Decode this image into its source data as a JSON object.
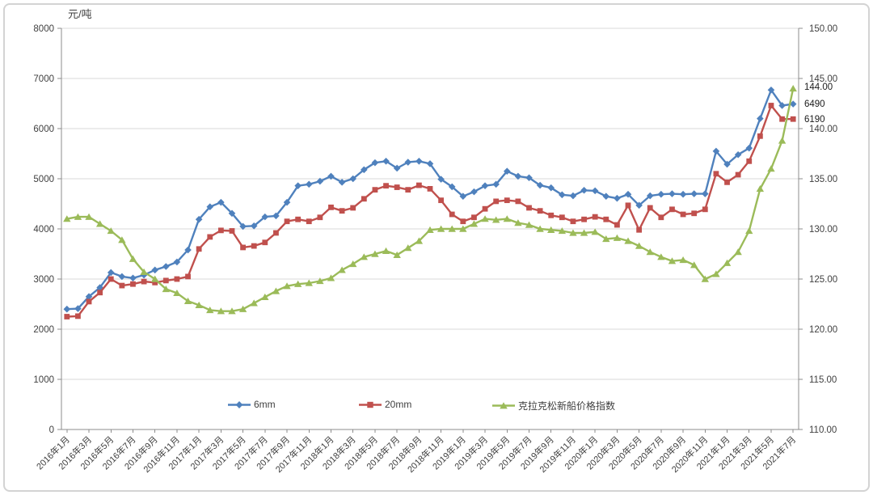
{
  "chart": {
    "y_axis_title": "元/吨",
    "background": "#ffffff",
    "frame_color": "#d3d3d3",
    "gridline_color": "#d9d9d9",
    "axis_color": "#8c8c8c",
    "text_color": "#3f3f3f"
  },
  "chart_data": {
    "type": "line",
    "title": "",
    "grid": true,
    "legend_position": "bottom-inside",
    "left_axis": {
      "title": "元/吨",
      "min": 0,
      "max": 8000,
      "step": 1000,
      "tick_labels": [
        "0",
        "1000",
        "2000",
        "3000",
        "4000",
        "5000",
        "6000",
        "7000",
        "8000"
      ]
    },
    "right_axis": {
      "min": 110,
      "max": 150,
      "step": 5,
      "tick_labels": [
        "110.00",
        "115.00",
        "120.00",
        "125.00",
        "130.00",
        "135.00",
        "140.00",
        "145.00",
        "150.00"
      ]
    },
    "x_tick_labels": [
      "2016年1月",
      "2016年3月",
      "2016年5月",
      "2016年7月",
      "2016年9月",
      "2016年11月",
      "2017年1月",
      "2017年3月",
      "2017年5月",
      "2017年7月",
      "2017年9月",
      "2017年11月",
      "2018年1月",
      "2018年3月",
      "2018年5月",
      "2018年7月",
      "2018年9月",
      "2018年11月",
      "2019年1月",
      "2019年3月",
      "2019年5月",
      "2019年7月",
      "2019年9月",
      "2019年11月",
      "2020年1月",
      "2020年3月",
      "2020年5月",
      "2020年7月",
      "2020年9月",
      "2020年11月",
      "2021年1月",
      "2021年3月",
      "2021年5月",
      "2021年7月"
    ],
    "x": [
      "2016年1月",
      "2016年2月",
      "2016年3月",
      "2016年4月",
      "2016年5月",
      "2016年6月",
      "2016年7月",
      "2016年8月",
      "2016年9月",
      "2016年10月",
      "2016年11月",
      "2016年12月",
      "2017年1月",
      "2017年2月",
      "2017年3月",
      "2017年4月",
      "2017年5月",
      "2017年6月",
      "2017年7月",
      "2017年8月",
      "2017年9月",
      "2017年10月",
      "2017年11月",
      "2017年12月",
      "2018年1月",
      "2018年2月",
      "2018年3月",
      "2018年4月",
      "2018年5月",
      "2018年6月",
      "2018年7月",
      "2018年8月",
      "2018年9月",
      "2018年10月",
      "2018年11月",
      "2018年12月",
      "2019年1月",
      "2019年2月",
      "2019年3月",
      "2019年4月",
      "2019年5月",
      "2019年6月",
      "2019年7月",
      "2019年8月",
      "2019年9月",
      "2019年10月",
      "2019年11月",
      "2019年12月",
      "2020年1月",
      "2020年2月",
      "2020年3月",
      "2020年4月",
      "2020年5月",
      "2020年6月",
      "2020年7月",
      "2020年8月",
      "2020年9月",
      "2020年10月",
      "2020年11月",
      "2020年12月",
      "2021年1月",
      "2021年2月",
      "2021年3月",
      "2021年4月",
      "2021年5月",
      "2021年6月",
      "2021年7月"
    ],
    "series": [
      {
        "name": "6mm",
        "axis": "left",
        "color": "#4F81BD",
        "marker": "diamond",
        "values": [
          2400,
          2410,
          2650,
          2830,
          3130,
          3050,
          3020,
          3080,
          3180,
          3250,
          3340,
          3580,
          4190,
          4440,
          4530,
          4310,
          4050,
          4060,
          4240,
          4260,
          4530,
          4860,
          4890,
          4950,
          5050,
          4930,
          5000,
          5180,
          5320,
          5350,
          5210,
          5330,
          5350,
          5300,
          4990,
          4840,
          4650,
          4740,
          4860,
          4890,
          5150,
          5050,
          5020,
          4870,
          4820,
          4680,
          4660,
          4770,
          4760,
          4650,
          4610,
          4690,
          4470,
          4660,
          4690,
          4700,
          4690,
          4700,
          4700,
          5550,
          5290,
          5480,
          5610,
          6200,
          6770,
          6460,
          6490
        ]
      },
      {
        "name": "20mm",
        "axis": "left",
        "color": "#C0504D",
        "marker": "square",
        "values": [
          2250,
          2260,
          2550,
          2730,
          3000,
          2870,
          2900,
          2950,
          2930,
          2970,
          3000,
          3050,
          3600,
          3840,
          3970,
          3960,
          3630,
          3660,
          3730,
          3920,
          4150,
          4190,
          4150,
          4230,
          4430,
          4360,
          4420,
          4600,
          4780,
          4860,
          4830,
          4780,
          4870,
          4800,
          4570,
          4290,
          4150,
          4230,
          4400,
          4550,
          4570,
          4550,
          4420,
          4360,
          4270,
          4230,
          4150,
          4190,
          4240,
          4190,
          4080,
          4470,
          3980,
          4420,
          4230,
          4390,
          4290,
          4310,
          4390,
          5100,
          4930,
          5080,
          5350,
          5850,
          6460,
          6190,
          6190
        ]
      },
      {
        "name": "克拉克松新船价格指数",
        "axis": "right",
        "color": "#9BBB59",
        "marker": "triangle",
        "values": [
          131.0,
          131.2,
          131.2,
          130.5,
          129.8,
          128.9,
          127.0,
          125.7,
          125.0,
          124.0,
          123.6,
          122.8,
          122.4,
          121.9,
          121.8,
          121.8,
          122.0,
          122.6,
          123.2,
          123.8,
          124.3,
          124.5,
          124.6,
          124.8,
          125.1,
          125.9,
          126.5,
          127.2,
          127.5,
          127.8,
          127.4,
          128.1,
          128.8,
          129.9,
          130.0,
          130.0,
          130.0,
          130.5,
          131.0,
          130.9,
          131.0,
          130.6,
          130.4,
          130.0,
          129.9,
          129.8,
          129.6,
          129.6,
          129.7,
          129.0,
          129.1,
          128.8,
          128.3,
          127.7,
          127.2,
          126.8,
          126.9,
          126.4,
          125.0,
          125.5,
          126.6,
          127.7,
          129.8,
          134.0,
          136.0,
          138.8,
          144.0
        ]
      }
    ],
    "data_labels": [
      {
        "series": "克拉克松新船价格指数",
        "x": "2021年7月",
        "text": "144.00"
      },
      {
        "series": "6mm",
        "x": "2021年7月",
        "text": "6490"
      },
      {
        "series": "20mm",
        "x": "2021年7月",
        "text": "6190"
      }
    ]
  }
}
